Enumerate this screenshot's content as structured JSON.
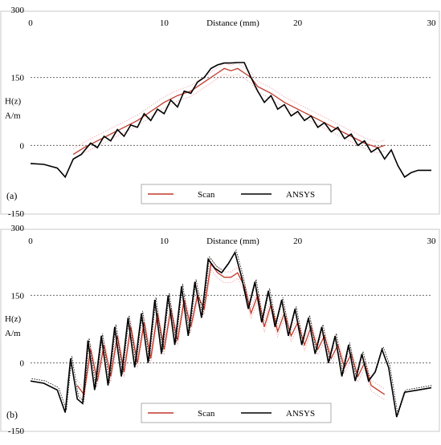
{
  "chart_data": [
    {
      "type": "line",
      "panel_label": "(a)",
      "xlabel": "Distance (mm)",
      "ylabel_line1": "H(z)",
      "ylabel_line2": "A/m",
      "xlim": [
        0,
        30
      ],
      "ylim": [
        -150,
        300
      ],
      "x_ticks": [
        0,
        10,
        20,
        30
      ],
      "y_ticks": [
        -150,
        0,
        150,
        300
      ],
      "gridlines_y": [
        0,
        150
      ],
      "legend": {
        "position": "bottom-center",
        "entries": [
          "Scan",
          "ANSYS"
        ]
      },
      "series": [
        {
          "name": "ANSYS",
          "color": "#000000",
          "x": [
            0,
            1,
            2,
            2.6,
            3.2,
            3.8,
            4.5,
            5.0,
            5.5,
            6.0,
            6.5,
            7.0,
            7.5,
            8.0,
            8.5,
            9.0,
            9.5,
            10.0,
            10.5,
            11.0,
            11.5,
            12.0,
            12.5,
            13.0,
            13.5,
            14.0,
            14.5,
            15.0,
            15.5,
            16.0,
            16.5,
            17.0,
            17.5,
            18.0,
            18.5,
            19.0,
            19.5,
            20.0,
            20.5,
            21.0,
            21.5,
            22.0,
            22.5,
            23.0,
            23.5,
            24.0,
            24.5,
            25.0,
            25.5,
            26.0,
            26.5,
            27.0,
            27.5,
            28.0,
            28.5,
            29.0,
            30.0
          ],
          "y": [
            -40,
            -42,
            -50,
            -70,
            -30,
            -20,
            5,
            -5,
            20,
            10,
            35,
            20,
            45,
            40,
            70,
            55,
            80,
            70,
            100,
            85,
            120,
            115,
            140,
            150,
            170,
            178,
            182,
            182,
            183,
            183,
            150,
            120,
            95,
            110,
            80,
            90,
            65,
            75,
            55,
            65,
            40,
            50,
            30,
            40,
            15,
            25,
            0,
            10,
            -15,
            -5,
            -30,
            -10,
            -45,
            -70,
            -60,
            -55,
            -55
          ]
        },
        {
          "name": "Scan",
          "color": "#c0392b",
          "x": [
            3.2,
            4.0,
            5.0,
            6.0,
            7.0,
            8.0,
            9.0,
            10.0,
            11.0,
            12.0,
            13.0,
            14.0,
            14.5,
            15.0,
            15.5,
            16.0,
            16.5,
            17.0,
            18.0,
            19.0,
            20.0,
            21.0,
            22.0,
            23.0,
            24.0,
            25.0,
            26.0,
            26.5
          ],
          "y": [
            -20,
            -5,
            10,
            25,
            40,
            55,
            75,
            95,
            110,
            120,
            140,
            160,
            170,
            165,
            170,
            160,
            150,
            130,
            115,
            95,
            80,
            65,
            50,
            35,
            20,
            5,
            -5,
            0
          ]
        }
      ]
    },
    {
      "type": "line",
      "panel_label": "(b)",
      "xlabel": "Distance (mm)",
      "ylabel_line1": "H(z)",
      "ylabel_line2": "A/m",
      "xlim": [
        0,
        30
      ],
      "ylim": [
        -150,
        300
      ],
      "x_ticks": [
        0,
        10,
        20,
        30
      ],
      "y_ticks": [
        -150,
        0,
        150,
        300
      ],
      "gridlines_y": [
        0,
        150
      ],
      "legend": {
        "position": "bottom-center",
        "entries": [
          "Scan",
          "ANSYS"
        ]
      },
      "series": [
        {
          "name": "ANSYS",
          "color": "#000000",
          "x": [
            0,
            1,
            2,
            2.6,
            3.0,
            3.5,
            3.9,
            4.3,
            4.8,
            5.3,
            5.8,
            6.3,
            6.8,
            7.3,
            7.8,
            8.3,
            8.8,
            9.3,
            9.8,
            10.3,
            10.8,
            11.3,
            11.8,
            12.3,
            12.8,
            13.3,
            13.8,
            14.3,
            14.8,
            15.3,
            15.8,
            16.3,
            16.8,
            17.3,
            17.8,
            18.3,
            18.8,
            19.3,
            19.8,
            20.3,
            20.8,
            21.3,
            21.8,
            22.3,
            22.8,
            23.3,
            23.8,
            24.3,
            24.8,
            25.3,
            25.8,
            26.3,
            26.8,
            27.4,
            28.0,
            29.0,
            30.0
          ],
          "y": [
            -40,
            -45,
            -60,
            -110,
            10,
            -80,
            -90,
            50,
            -60,
            60,
            -50,
            80,
            -30,
            100,
            -10,
            110,
            0,
            140,
            20,
            150,
            40,
            170,
            60,
            180,
            100,
            230,
            210,
            200,
            220,
            245,
            190,
            120,
            180,
            90,
            160,
            80,
            140,
            60,
            120,
            40,
            100,
            20,
            80,
            0,
            60,
            -30,
            40,
            -40,
            20,
            -40,
            -20,
            30,
            -10,
            -120,
            -65,
            -60,
            -55
          ]
        },
        {
          "name": "Scan",
          "color": "#c0392b",
          "x": [
            3.5,
            4.0,
            4.5,
            5.0,
            5.5,
            6.0,
            6.5,
            7.0,
            7.5,
            8.0,
            8.5,
            9.0,
            9.5,
            10.0,
            10.5,
            11.0,
            11.5,
            12.0,
            12.5,
            13.0,
            13.5,
            14.0,
            14.5,
            15.0,
            15.5,
            16.0,
            16.5,
            17.0,
            17.5,
            18.0,
            18.5,
            19.0,
            19.5,
            20.0,
            20.5,
            21.0,
            21.5,
            22.0,
            22.5,
            23.0,
            23.5,
            24.0,
            24.5,
            25.0,
            25.5,
            26.0,
            26.5
          ],
          "y": [
            -50,
            -70,
            30,
            -40,
            40,
            -30,
            60,
            -20,
            80,
            0,
            90,
            10,
            110,
            30,
            120,
            50,
            140,
            80,
            150,
            120,
            220,
            200,
            190,
            190,
            200,
            170,
            110,
            150,
            80,
            130,
            70,
            110,
            60,
            90,
            40,
            80,
            30,
            60,
            10,
            40,
            -10,
            20,
            -30,
            0,
            -50,
            -60,
            -70
          ]
        }
      ]
    }
  ]
}
